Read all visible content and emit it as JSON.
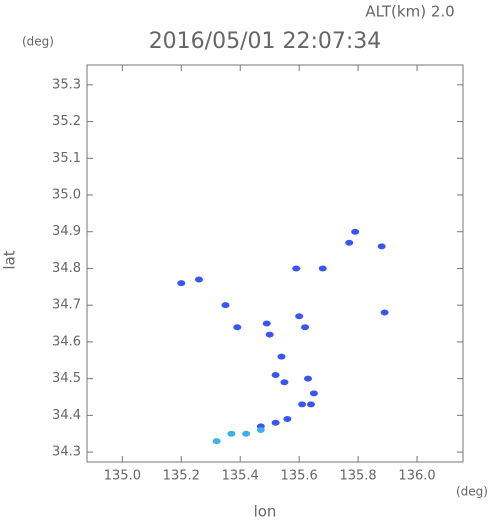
{
  "chart_data": {
    "type": "scatter",
    "title": "2016/05/01 22:07:34",
    "subtitle": "ALT(km) 2.0",
    "x_label": "lon",
    "y_label": "lat",
    "x_unit": "(deg)",
    "y_unit": "(deg)",
    "xlim": [
      134.88,
      136.156
    ],
    "ylim": [
      34.273,
      35.354
    ],
    "xticks": [
      {
        "value": 135.0,
        "label": "135.0"
      },
      135.2,
      135.4,
      135.6,
      135.8,
      {
        "value": 136.0,
        "label": "136.0"
      }
    ],
    "yticks": [
      34.3,
      34.4,
      34.5,
      34.6,
      34.7,
      34.8,
      34.9,
      {
        "value": 35.0,
        "label": "35.0"
      },
      35.1,
      35.2,
      35.3
    ],
    "series": [
      {
        "color": "#3a55f0",
        "x": [
          135.2,
          135.26,
          135.35,
          135.39,
          135.49,
          135.5,
          135.54,
          135.52,
          135.55,
          135.62,
          135.6,
          135.63,
          135.65,
          135.61,
          135.64,
          135.56,
          135.52,
          135.47,
          135.77,
          135.79,
          135.88,
          135.89,
          135.59,
          135.68
        ],
        "values": [
          34.76,
          34.77,
          34.7,
          34.64,
          34.65,
          34.62,
          34.56,
          34.51,
          34.49,
          34.64,
          34.67,
          34.5,
          34.46,
          34.43,
          34.43,
          34.39,
          34.38,
          34.37,
          34.87,
          34.9,
          34.86,
          34.68,
          34.8,
          34.8
        ]
      },
      {
        "color": "#3fb0e8",
        "x": [
          135.37,
          135.42,
          135.47,
          135.32
        ],
        "values": [
          34.35,
          34.35,
          34.36,
          34.33
        ]
      }
    ]
  }
}
